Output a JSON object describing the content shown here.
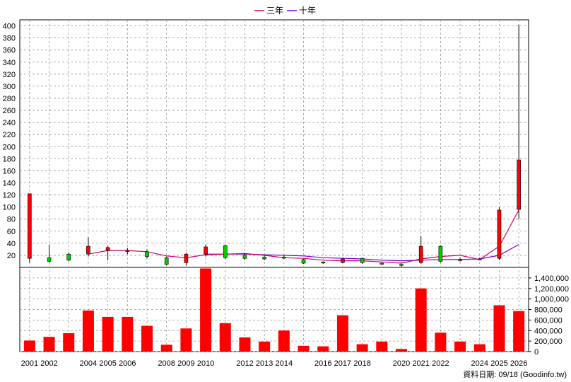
{
  "chart_data": {
    "type": "candlestick+bar",
    "legend": [
      {
        "name": "三年",
        "color": "#cc0066"
      },
      {
        "name": "十年",
        "color": "#7700cc"
      }
    ],
    "price_axis": {
      "min": 0,
      "max": 410,
      "ticks": [
        "20",
        "40",
        "60",
        "80",
        "100",
        "120",
        "140",
        "160",
        "180",
        "200",
        "220",
        "240",
        "260",
        "280",
        "300",
        "320",
        "340",
        "360",
        "380",
        "400"
      ]
    },
    "volume_axis": {
      "min": 0,
      "max": 1600000,
      "ticks": [
        "0",
        "200,000",
        "400,000",
        "600,000",
        "800,000",
        "1,000,000",
        "1,200,000",
        "1,400,000"
      ]
    },
    "x_labels": [
      "2001",
      "2002",
      "",
      "2004",
      "2005",
      "2006",
      "",
      "2008",
      "2009",
      "2010",
      "",
      "2012",
      "2013",
      "2014",
      "",
      "2016",
      "2017",
      "2018",
      "",
      "2020",
      "2021",
      "2022",
      "",
      "2024",
      "2025",
      "2026"
    ],
    "candles": [
      {
        "open": 15,
        "close": 122,
        "high": 122,
        "low": 8
      },
      {
        "open": 16,
        "close": 10,
        "high": 38,
        "low": 8
      },
      {
        "open": 22,
        "close": 12,
        "high": 25,
        "low": 10
      },
      {
        "open": 22,
        "close": 35,
        "high": 50,
        "low": 18
      },
      {
        "open": 28,
        "close": 33,
        "high": 35,
        "low": 12
      },
      {
        "open": 27,
        "close": 28,
        "high": 32,
        "low": 22
      },
      {
        "open": 26,
        "close": 18,
        "high": 30,
        "low": 15
      },
      {
        "open": 16,
        "close": 5,
        "high": 18,
        "low": 3
      },
      {
        "open": 8,
        "close": 22,
        "high": 24,
        "low": 3
      },
      {
        "open": 22,
        "close": 34,
        "high": 38,
        "low": 18
      },
      {
        "open": 36,
        "close": 16,
        "high": 38,
        "low": 14
      },
      {
        "open": 20,
        "close": 15,
        "high": 24,
        "low": 12
      },
      {
        "open": 17,
        "close": 14,
        "high": 20,
        "low": 12
      },
      {
        "open": 17,
        "close": 16,
        "high": 20,
        "low": 14
      },
      {
        "open": 13,
        "close": 7,
        "high": 14,
        "low": 6
      },
      {
        "open": 9,
        "close": 8,
        "high": 10,
        "low": 6
      },
      {
        "open": 8,
        "close": 14,
        "high": 16,
        "low": 7
      },
      {
        "open": 15,
        "close": 8,
        "high": 16,
        "low": 6
      },
      {
        "open": 7,
        "close": 6,
        "high": 8,
        "low": 4
      },
      {
        "open": 5,
        "close": 4,
        "high": 6,
        "low": 1
      },
      {
        "open": 8,
        "close": 35,
        "high": 52,
        "low": 6
      },
      {
        "open": 35,
        "close": 10,
        "high": 36,
        "low": 9
      },
      {
        "open": 12,
        "close": 13,
        "high": 16,
        "low": 10
      },
      {
        "open": 14,
        "close": 13,
        "high": 16,
        "low": 12
      },
      {
        "open": 15,
        "close": 95,
        "high": 100,
        "low": 12
      },
      {
        "open": 96,
        "close": 178,
        "high": 402,
        "low": 80
      }
    ],
    "ma_3y": [
      null,
      null,
      null,
      22,
      28,
      28,
      26,
      19,
      16,
      21,
      22,
      23,
      20,
      16,
      15,
      12,
      11,
      11,
      9,
      7,
      14,
      18,
      20,
      13,
      35,
      95
    ],
    "ma_10y": [
      null,
      null,
      null,
      null,
      null,
      null,
      null,
      null,
      null,
      22,
      22,
      22,
      21,
      20,
      19,
      16,
      15,
      14,
      12,
      11,
      12,
      13,
      13,
      14,
      20,
      38
    ],
    "volumes": [
      210000,
      280000,
      350000,
      780000,
      660000,
      660000,
      490000,
      130000,
      440000,
      1580000,
      540000,
      270000,
      190000,
      400000,
      110000,
      100000,
      690000,
      140000,
      190000,
      50000,
      1200000,
      360000,
      190000,
      140000,
      880000,
      770000
    ],
    "colors": {
      "up": "#ff0000",
      "down": "#00cc00",
      "volume": "#ff0000",
      "grid": "#999999"
    }
  },
  "source_label": "資料日期: 09/18  (Goodinfo.tw)"
}
